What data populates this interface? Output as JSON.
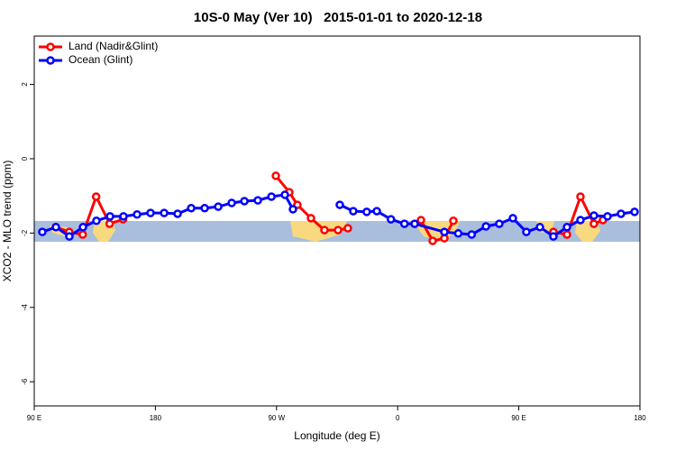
{
  "chart_data": {
    "type": "line",
    "title": "10S-0 May (Ver 10)   2015-01-01 to 2020-12-18",
    "x_label": "Longitude (deg E)",
    "y_label": "XCO2 - MLO trend (ppm)",
    "xlim": [
      90,
      540
    ],
    "xticks": [
      {
        "value": 90,
        "label": "90 E"
      },
      {
        "value": 180,
        "label": "180"
      },
      {
        "value": 270,
        "label": "90 W"
      },
      {
        "value": 360,
        "label": "0"
      },
      {
        "value": 450,
        "label": "90 E"
      },
      {
        "value": 540,
        "label": "180"
      }
    ],
    "ylim": [
      -6.65,
      3.3
    ],
    "yticks": [
      2,
      0,
      -2,
      -4,
      -6
    ],
    "legend": "topleft",
    "series": [
      {
        "name": "Land (Nadir&Glint)",
        "color": "#ff0000",
        "x": [
          106,
          116,
          126,
          136,
          146,
          156,
          166,
          269.5,
          279.5,
          285.5,
          295.6,
          305.6,
          315.7,
          323,
          350,
          377.3,
          386,
          394.7,
          401.4,
          440,
          475.7,
          485.8,
          495.8,
          505.8,
          512.5
        ],
        "values": [
          -1.84,
          -1.97,
          -2.04,
          -1.02,
          -1.75,
          -1.63,
          null,
          -0.46,
          -0.9,
          -1.24,
          -1.6,
          -1.92,
          -1.92,
          -1.87,
          null,
          -1.65,
          -2.21,
          -2.14,
          -1.67,
          null,
          -1.97,
          -2.04,
          -1.02,
          -1.75,
          -1.65
        ]
      },
      {
        "name": "Ocean (Glint)",
        "color": "#0000ff",
        "x": [
          96,
          106.1,
          116.1,
          126.2,
          136.2,
          146.3,
          156.3,
          166.4,
          176.4,
          186.5,
          196.5,
          206.6,
          216.6,
          226.7,
          236.7,
          246.1,
          256.1,
          266.2,
          276.2,
          282.2,
          300,
          317,
          327,
          337,
          344.5,
          355,
          365,
          372.6,
          394.7,
          405,
          415,
          425.6,
          435.5,
          445.6,
          455.6,
          465.7,
          475.7,
          485.8,
          495.8,
          505.8,
          515.9,
          525.9,
          536
        ],
        "values": [
          -1.97,
          -1.84,
          -2.09,
          -1.84,
          -1.67,
          -1.55,
          -1.55,
          -1.5,
          -1.46,
          -1.46,
          -1.48,
          -1.33,
          -1.33,
          -1.29,
          -1.19,
          -1.14,
          -1.12,
          -1.02,
          -0.97,
          -1.36,
          null,
          -1.24,
          -1.41,
          -1.43,
          -1.41,
          -1.63,
          -1.75,
          -1.75,
          -1.97,
          -2.01,
          -2.04,
          -1.82,
          -1.75,
          -1.6,
          -1.97,
          -1.84,
          -2.09,
          -1.84,
          -1.65,
          -1.53,
          -1.55,
          -1.48,
          -1.43
        ]
      }
    ]
  }
}
